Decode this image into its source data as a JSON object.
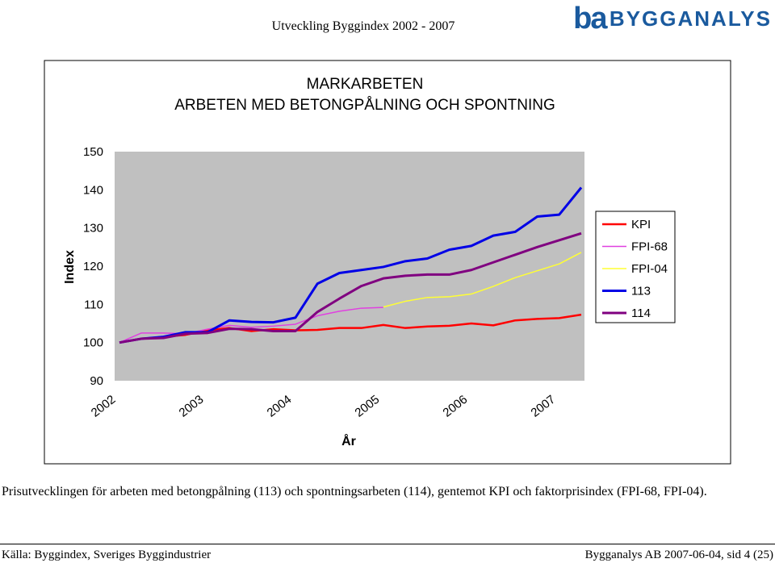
{
  "header": {
    "title": "Utveckling Byggindex 2002 - 2007"
  },
  "logo": {
    "mark": "ba",
    "name": "BYGGANALYS"
  },
  "chart_data": {
    "type": "line",
    "title": "MARKARBETEN",
    "subtitle": "ARBETEN MED BETONGPÅLNING OCH SPONTNING",
    "ylabel": "Index",
    "xlabel": "År",
    "x": [
      2002,
      2002.25,
      2002.5,
      2002.75,
      2003,
      2003.25,
      2003.5,
      2003.75,
      2004,
      2004.25,
      2004.5,
      2004.75,
      2005,
      2005.25,
      2005.5,
      2005.75,
      2006,
      2006.25,
      2006.5,
      2006.75,
      2007,
      2007.25
    ],
    "xlim": [
      2002,
      2007.25
    ],
    "xticks": [
      2002,
      2003,
      2004,
      2005,
      2006,
      2007
    ],
    "ylim": [
      90,
      150
    ],
    "yticks": [
      90,
      100,
      110,
      120,
      130,
      140,
      150
    ],
    "grid": false,
    "legend": "right",
    "background": "#c0c0c0",
    "series": [
      {
        "name": "KPI",
        "color": "#ff0000",
        "values": [
          100,
          101,
          101.5,
          102,
          103.2,
          103.8,
          103,
          103.5,
          103.2,
          103.3,
          103.8,
          103.8,
          104.6,
          103.8,
          104.2,
          104.4,
          105,
          104.5,
          105.8,
          106.2,
          106.4,
          107.3
        ]
      },
      {
        "name": "FPI-68",
        "color": "#e040e0",
        "values": [
          100,
          102.5,
          102.5,
          102.3,
          103.5,
          104.5,
          104,
          104.3,
          104.8,
          107,
          108.2,
          109,
          109.2,
          null,
          null,
          null,
          null,
          null,
          null,
          null,
          null,
          null
        ]
      },
      {
        "name": "FPI-04",
        "color": "#ffff33",
        "values": [
          null,
          null,
          null,
          null,
          null,
          null,
          null,
          null,
          null,
          null,
          null,
          null,
          109.3,
          110.8,
          111.8,
          112,
          112.7,
          114.7,
          117,
          118.8,
          120.6,
          123.6
        ]
      },
      {
        "name": "113",
        "color": "#0000e6",
        "values": [
          100,
          101,
          101.5,
          102.7,
          102.7,
          105.8,
          105.4,
          105.3,
          106.5,
          115.4,
          118.2,
          119,
          119.8,
          121.3,
          122,
          124.3,
          125.3,
          128,
          129,
          133,
          133.5,
          140.6
        ]
      },
      {
        "name": "114",
        "color": "#800080",
        "values": [
          100,
          101,
          101.2,
          102.3,
          102.5,
          103.6,
          103.5,
          103,
          103,
          108,
          111.5,
          114.8,
          116.8,
          117.5,
          117.8,
          117.8,
          119,
          121,
          123,
          125,
          126.8,
          128.6
        ]
      }
    ]
  },
  "caption": "Prisutvecklingen för arbeten med betongpålning (113) och spontningsarbeten (114), gentemot KPI och faktorprisindex (FPI-68, FPI-04).",
  "footer": {
    "left": "Källa: Byggindex, Sveriges Byggindustrier",
    "right": "Bygganalys AB 2007-06-04, sid 4 (25)"
  }
}
